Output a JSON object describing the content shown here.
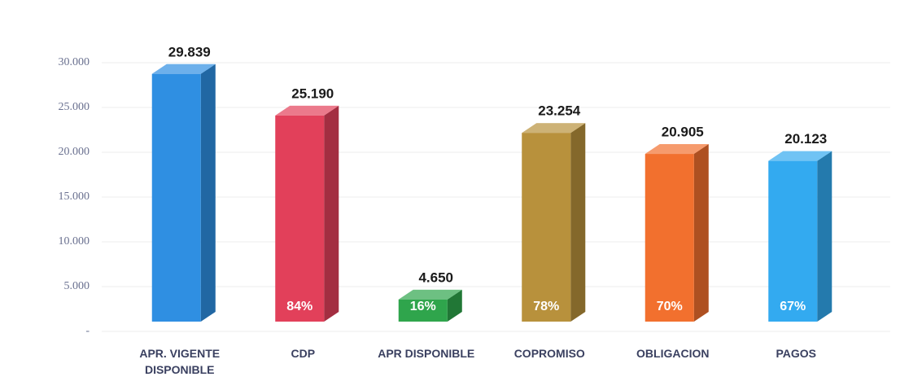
{
  "chart_data": {
    "type": "bar3d",
    "categories": [
      "APR. VIGENTE DISPONIBLE",
      "CDP",
      "APR DISPONIBLE",
      "COPROMISO",
      "OBLIGACION",
      "PAGOS"
    ],
    "values": [
      29839,
      25190,
      4650,
      23254,
      20905,
      20123
    ],
    "value_labels": [
      "29.839",
      "25.190",
      "4.650",
      "23.254",
      "20.905",
      "20.123"
    ],
    "colors": [
      "#2f8fe2",
      "#e2405a",
      "#2fa54c",
      "#b8913c",
      "#f2702e",
      "#33aaf0"
    ],
    "shares": {
      "values": [
        null,
        84,
        16,
        78,
        70,
        67
      ],
      "value_labels": [
        null,
        "84%",
        "16%",
        "78%",
        "70%",
        "67%"
      ]
    },
    "ylim": [
      0,
      32000
    ],
    "yticks": [
      {
        "value": 0,
        "label": "-"
      },
      {
        "value": 5000,
        "label": "5.000"
      },
      {
        "value": 10000,
        "label": "10.000"
      },
      {
        "value": 15000,
        "label": "15.000"
      },
      {
        "value": 20000,
        "label": "20.000"
      },
      {
        "value": 25000,
        "label": "25.000"
      },
      {
        "value": 30000,
        "label": "30.000"
      }
    ],
    "grid": true
  }
}
